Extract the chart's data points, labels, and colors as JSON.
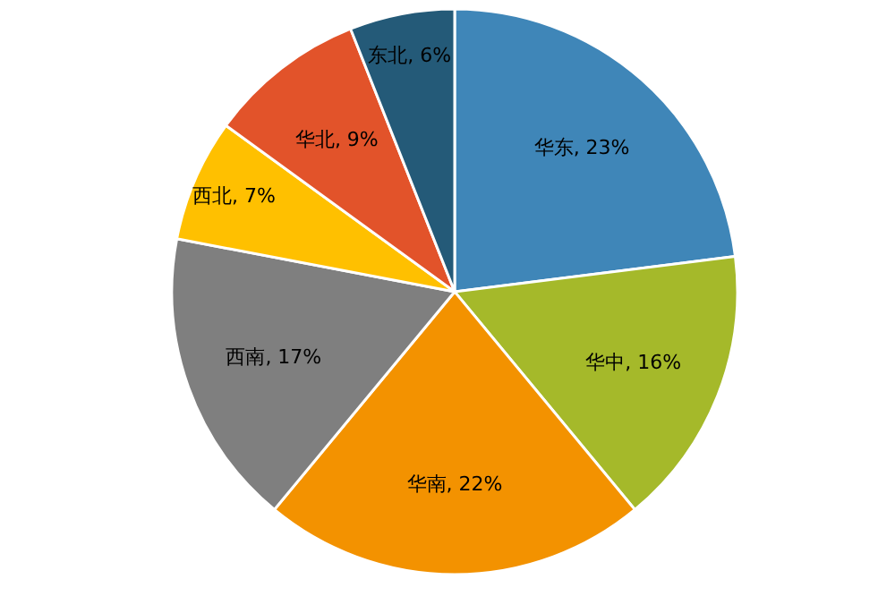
{
  "chart_data": {
    "type": "pie",
    "categories": [
      "华东",
      "华中",
      "华南",
      "西南",
      "西北",
      "华北",
      "东北"
    ],
    "values": [
      23,
      16,
      22,
      17,
      7,
      9,
      6
    ],
    "value_labels": [
      "23%",
      "16%",
      "22%",
      "17%",
      "7%",
      "9%",
      "6%"
    ],
    "colors": [
      "#3f86b8",
      "#a5b92a",
      "#f39200",
      "#7f7f7f",
      "#ffc000",
      "#e2532a",
      "#245a78"
    ]
  }
}
